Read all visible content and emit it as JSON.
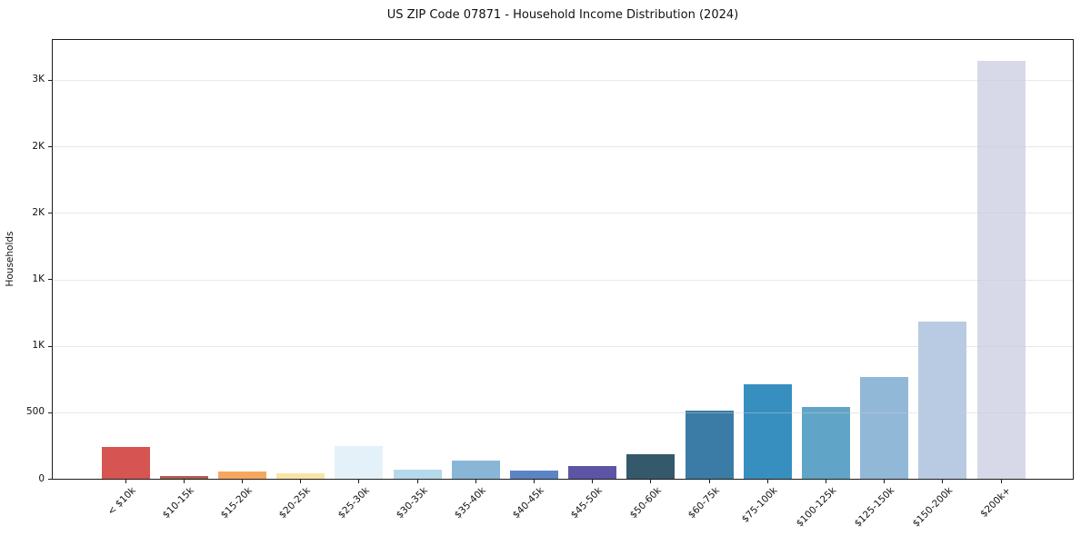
{
  "chart_data": {
    "type": "bar",
    "title": "US ZIP Code 07871 - Household Income Distribution (2024)",
    "ylabel": "Households",
    "xlabel": "",
    "legend": "none",
    "grid": "horizontal-light",
    "categories": [
      "< $10k",
      "$10-15k",
      "$15-20k",
      "$20-25k",
      "$25-30k",
      "$30-35k",
      "$35-40k",
      "$40-45k",
      "$45-50k",
      "$50-60k",
      "$60-75k",
      "$75-100k",
      "$100-125k",
      "$125-150k",
      "$150-200k",
      "$200k+"
    ],
    "values": [
      240,
      20,
      58,
      42,
      245,
      70,
      135,
      62,
      97,
      185,
      512,
      710,
      540,
      765,
      1185,
      3140
    ],
    "bar_colors": [
      "#d65553",
      "#aa5f52",
      "#f6a75f",
      "#f9e3a5",
      "#e4f1f8",
      "#b5d9ea",
      "#89b6d7",
      "#5b84c4",
      "#5c55a6",
      "#34596b",
      "#3a7ca5",
      "#378fc0",
      "#60a5c8",
      "#92b8d8",
      "#b8cbe2",
      "#d8d9e8"
    ],
    "yticks": [
      {
        "value": 0,
        "label": "0"
      },
      {
        "value": 500,
        "label": "500"
      },
      {
        "value": 1000,
        "label": "1K"
      },
      {
        "value": 1500,
        "label": "1K"
      },
      {
        "value": 2000,
        "label": "2K"
      },
      {
        "value": 2500,
        "label": "2K"
      },
      {
        "value": 3000,
        "label": "3K"
      }
    ],
    "ylim": [
      0,
      3300
    ],
    "axis_color": "#1c1c1c",
    "background": "#ffffff"
  }
}
